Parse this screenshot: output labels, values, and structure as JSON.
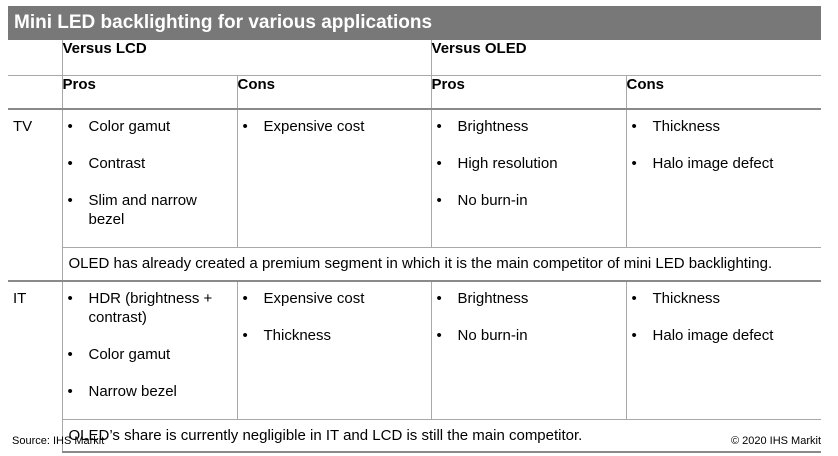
{
  "title": "Mini LED backlighting for various applications",
  "headers": {
    "versus_lcd": "Versus LCD",
    "versus_oled": "Versus OLED",
    "pros": "Pros",
    "cons": "Cons"
  },
  "rows": [
    {
      "app": "TV",
      "lcd_pros": [
        "Color gamut",
        "Contrast",
        "Slim and narrow bezel"
      ],
      "lcd_cons": [
        "Expensive cost"
      ],
      "oled_pros": [
        "Brightness",
        "High resolution",
        "No burn-in"
      ],
      "oled_cons": [
        "Thickness",
        "Halo image defect"
      ],
      "note": "OLED has already created a premium  segment in which it is the main competitor of mini LED backlighting."
    },
    {
      "app": "IT",
      "lcd_pros": [
        "HDR (brightness + contrast)",
        "Color gamut",
        "Narrow bezel"
      ],
      "lcd_cons": [
        "Expensive cost",
        "Thickness"
      ],
      "oled_pros": [
        "Brightness",
        "No burn-in"
      ],
      "oled_cons": [
        "Thickness",
        "Halo image defect"
      ],
      "note": "OLED’s share is currently negligible in IT and LCD is still the main competitor."
    }
  ],
  "footer": {
    "source": "Source: IHS Markit",
    "copyright": "© 2020 IHS Markit"
  }
}
